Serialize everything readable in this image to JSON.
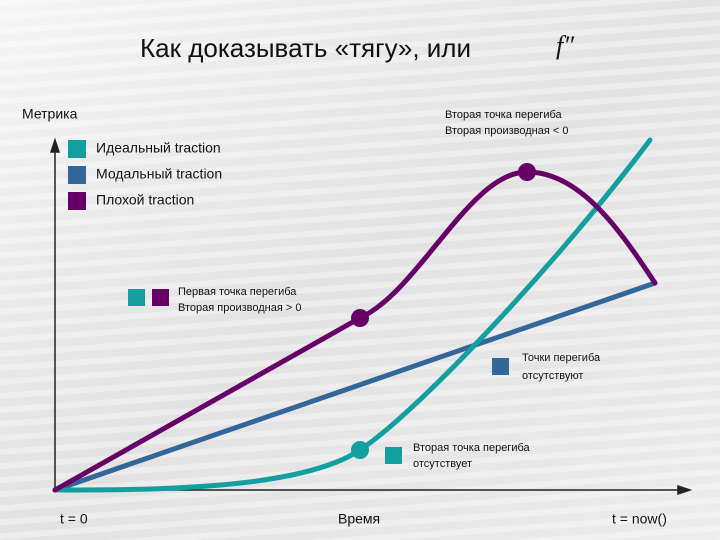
{
  "title": {
    "text": "Как доказывать «тягу», или",
    "formula": "f″"
  },
  "axes": {
    "y_label": "Метрика",
    "x_start": "t = 0",
    "x_label": "Время",
    "x_end": "t = now()"
  },
  "legend": [
    "Идеальный traction",
    "Модальный traction",
    "Плохой traction"
  ],
  "annotations": {
    "peak": [
      "Вторая точка перегиба",
      "Вторая производная < 0"
    ],
    "first": [
      "Первая точка перегиба",
      "Вторая производная > 0"
    ],
    "none": [
      "Точки перегиба",
      "отсутствуют"
    ],
    "second_missing": [
      "Вторая точка перегиба",
      "отсутствует"
    ]
  }
}
